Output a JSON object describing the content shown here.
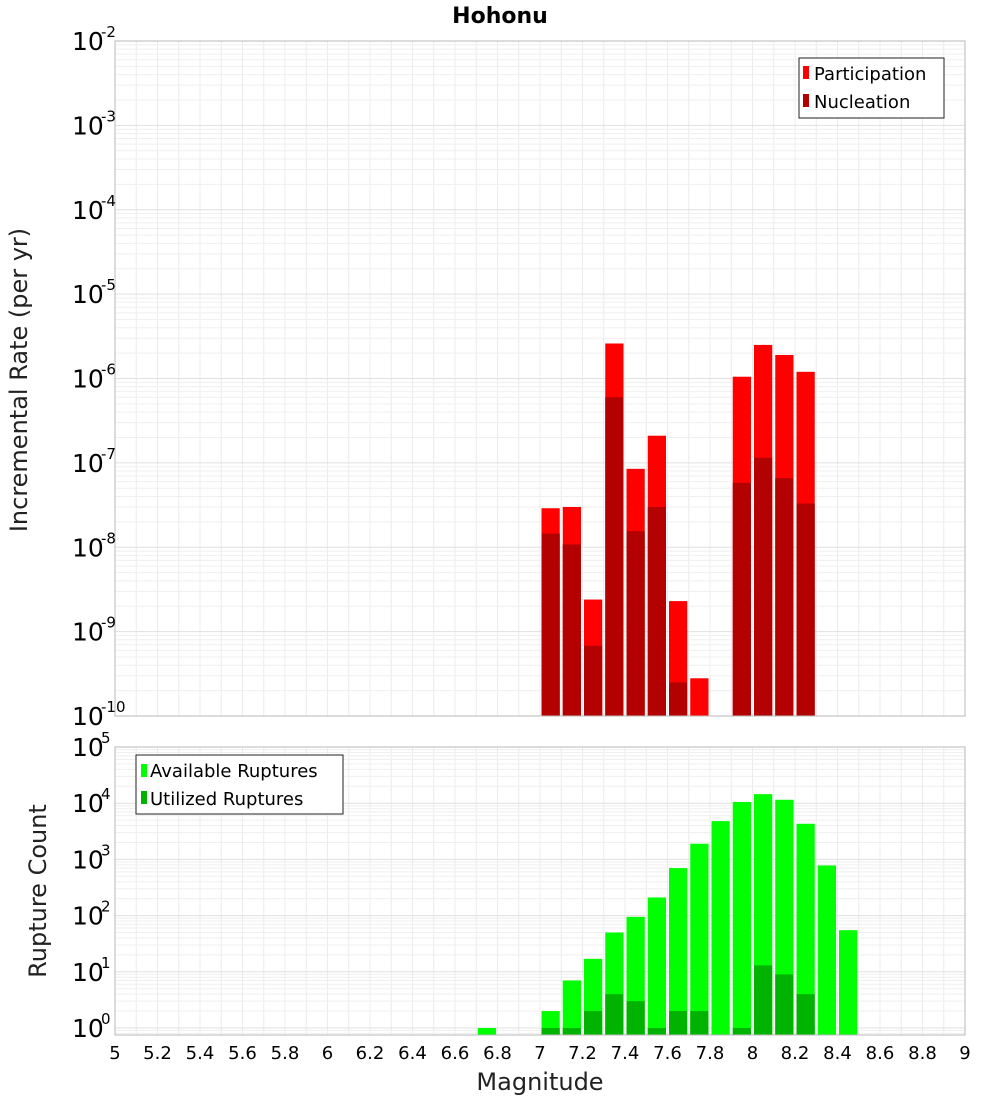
{
  "chart_data": [
    {
      "type": "bar",
      "scale": "log",
      "title": "Hohonu",
      "xlabel": "",
      "ylabel": "Incremental Rate (per yr)",
      "xlim": [
        5,
        9
      ],
      "ylim": [
        1e-10,
        0.01
      ],
      "grid": true,
      "legend_position": "top-right",
      "y_ticks": [
        {
          "base": "10",
          "exp": "-2",
          "value": 0.01
        },
        {
          "base": "10",
          "exp": "-3",
          "value": 0.001
        },
        {
          "base": "10",
          "exp": "-4",
          "value": 0.0001
        },
        {
          "base": "10",
          "exp": "-5",
          "value": 1e-05
        },
        {
          "base": "10",
          "exp": "-6",
          "value": 1e-06
        },
        {
          "base": "10",
          "exp": "-7",
          "value": 1e-07
        },
        {
          "base": "10",
          "exp": "-8",
          "value": 1e-08
        },
        {
          "base": "10",
          "exp": "-9",
          "value": 1e-09
        },
        {
          "base": "10",
          "exp": "-10",
          "value": 1e-10
        }
      ],
      "series": [
        {
          "name": "Participation",
          "color": "#ff0000",
          "x": [
            7.05,
            7.15,
            7.25,
            7.35,
            7.45,
            7.55,
            7.65,
            7.75,
            7.95,
            8.05,
            8.15,
            8.25
          ],
          "values": [
            2.9e-08,
            3e-08,
            2.4e-09,
            2.6e-06,
            8.5e-08,
            2.1e-07,
            2.3e-09,
            2.8e-10,
            1.05e-06,
            2.5e-06,
            1.9e-06,
            1.2e-06
          ]
        },
        {
          "name": "Nucleation",
          "color": "#b30000",
          "x": [
            7.05,
            7.15,
            7.25,
            7.35,
            7.45,
            7.55,
            7.65,
            7.95,
            8.05,
            8.15,
            8.25
          ],
          "values": [
            1.45e-08,
            1.08e-08,
            6.8e-10,
            6e-07,
            1.55e-08,
            3e-08,
            2.5e-10,
            5.8e-08,
            1.15e-07,
            6.6e-08,
            3.3e-08
          ]
        }
      ]
    },
    {
      "type": "bar",
      "scale": "log",
      "title": "",
      "xlabel": "Magnitude",
      "ylabel": "Rupture Count",
      "xlim": [
        5,
        9
      ],
      "ylim": [
        0.75,
        100000.0
      ],
      "grid": true,
      "legend_position": "top-left",
      "x_ticks": [
        "5",
        "5.2",
        "5.4",
        "5.6",
        "5.8",
        "6",
        "6.2",
        "6.4",
        "6.6",
        "6.8",
        "7",
        "7.2",
        "7.4",
        "7.6",
        "7.8",
        "8",
        "8.2",
        "8.4",
        "8.6",
        "8.8",
        "9"
      ],
      "y_ticks": [
        {
          "base": "10",
          "exp": "5",
          "value": 100000.0
        },
        {
          "base": "10",
          "exp": "4",
          "value": 10000.0
        },
        {
          "base": "10",
          "exp": "3",
          "value": 1000.0
        },
        {
          "base": "10",
          "exp": "2",
          "value": 100.0
        },
        {
          "base": "10",
          "exp": "1",
          "value": 10.0
        },
        {
          "base": "10",
          "exp": "0",
          "value": 1
        }
      ],
      "series": [
        {
          "name": "Available Ruptures",
          "color": "#00ff00",
          "x": [
            6.75,
            7.05,
            7.15,
            7.25,
            7.35,
            7.45,
            7.55,
            7.65,
            7.75,
            7.85,
            7.95,
            8.05,
            8.15,
            8.25,
            8.35,
            8.45
          ],
          "values": [
            1,
            2,
            7,
            17,
            50,
            95,
            210,
            700,
            1900,
            4800,
            10500,
            14500,
            11500,
            4300,
            780,
            55
          ]
        },
        {
          "name": "Utilized Ruptures",
          "color": "#00b300",
          "x": [
            7.05,
            7.15,
            7.25,
            7.35,
            7.45,
            7.55,
            7.65,
            7.75,
            7.95,
            8.05,
            8.15,
            8.25
          ],
          "values": [
            1,
            1,
            2,
            4,
            3,
            1,
            2,
            2,
            1,
            13,
            9,
            4
          ]
        }
      ]
    }
  ]
}
